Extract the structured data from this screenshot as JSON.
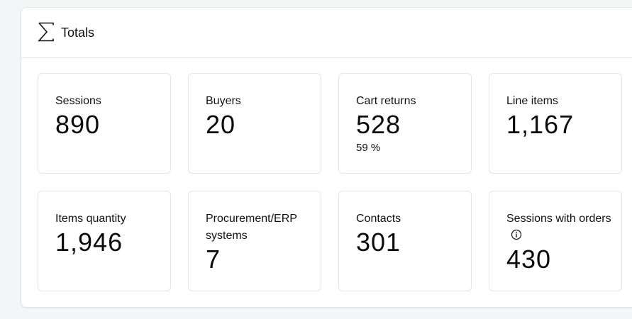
{
  "panel": {
    "title": "Totals",
    "icon": "sigma-icon"
  },
  "cards": [
    {
      "label": "Sessions",
      "value": "890"
    },
    {
      "label": "Buyers",
      "value": "20"
    },
    {
      "label": "Cart returns",
      "value": "528",
      "sub": "59 %"
    },
    {
      "label": "Line items",
      "value": "1,167"
    },
    {
      "label": "Items quantity",
      "value": "1,946"
    },
    {
      "label": "Procurement/ERP systems",
      "value": "7"
    },
    {
      "label": "Contacts",
      "value": "301"
    },
    {
      "label": "Sessions with orders",
      "value": "430",
      "icon": "info-icon"
    }
  ]
}
